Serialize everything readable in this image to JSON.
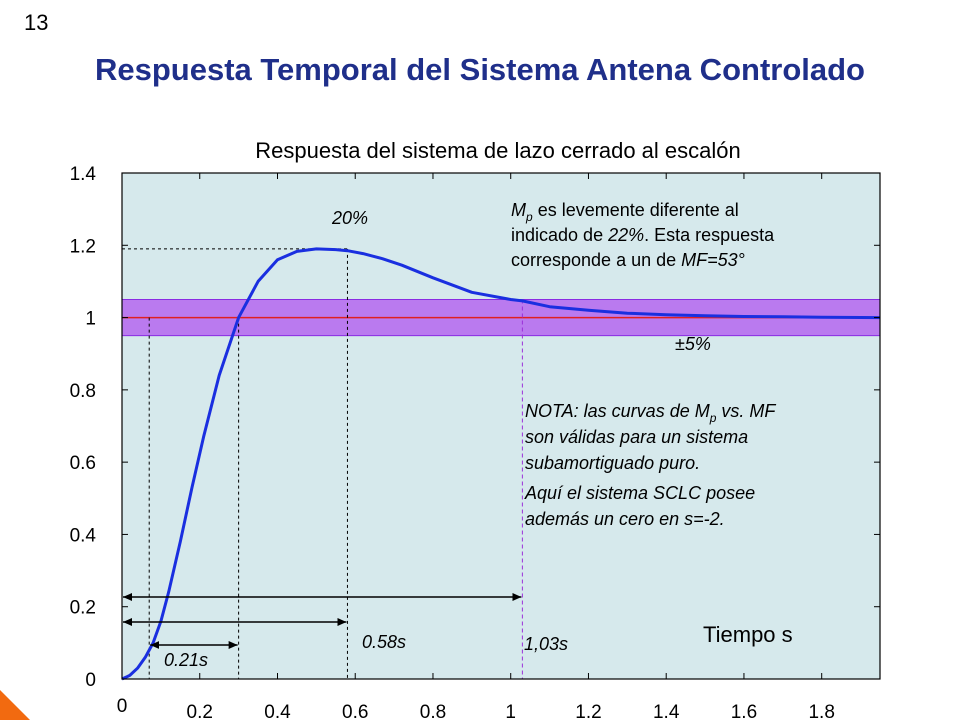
{
  "slide": {
    "number": "13",
    "title": "Respuesta Temporal del Sistema Antena Controlado"
  },
  "chart_data": {
    "type": "line",
    "title": "Respuesta del sistema de lazo cerrado al escalón",
    "xlabel": "Tiempo s",
    "ylabel": "",
    "xlim": [
      0,
      1.95
    ],
    "ylim": [
      0,
      1.4
    ],
    "x_ticks": [
      "0",
      "0.2",
      "0.4",
      "0.6",
      "0.8",
      "1",
      "1.2",
      "1.4",
      "1.6",
      "1.8"
    ],
    "y_ticks": [
      "0",
      "0.2",
      "0.4",
      "0.6",
      "0.8",
      "1",
      "1.2",
      "1.4"
    ],
    "grid": false,
    "background": "#d6e9ec",
    "series": [
      {
        "color": "#1a2fe0",
        "x": [
          0,
          0.02,
          0.04,
          0.06,
          0.08,
          0.1,
          0.12,
          0.15,
          0.18,
          0.21,
          0.25,
          0.3,
          0.35,
          0.4,
          0.45,
          0.5,
          0.55,
          0.58,
          0.62,
          0.67,
          0.72,
          0.8,
          0.9,
          1.0,
          1.03,
          1.1,
          1.2,
          1.3,
          1.4,
          1.5,
          1.6,
          1.7,
          1.8,
          1.95
        ],
        "y": [
          0,
          0.01,
          0.03,
          0.06,
          0.1,
          0.16,
          0.24,
          0.38,
          0.53,
          0.67,
          0.84,
          1.0,
          1.1,
          1.16,
          1.183,
          1.19,
          1.188,
          1.185,
          1.177,
          1.163,
          1.145,
          1.11,
          1.07,
          1.05,
          1.046,
          1.03,
          1.02,
          1.012,
          1.008,
          1.005,
          1.003,
          1.002,
          1.001,
          1.0
        ]
      }
    ],
    "reference_line": {
      "y": 1.0,
      "color": "#e02020"
    },
    "tolerance_band": {
      "ymin": 0.95,
      "ymax": 1.05,
      "color": "#b566f0",
      "label": "±5%"
    },
    "markers": {
      "t1": 0.07,
      "tr": 0.3,
      "tp": 0.58,
      "ts": 1.03,
      "peak": 1.19
    },
    "labels": {
      "tr": "0.21s",
      "tp": "0.58s",
      "ts": "1,03s",
      "overshoot": "20%"
    },
    "notes": {
      "mp_line1_sym": "M",
      "mp_line1_sub": "p",
      "mp_line1_rest": " es levemente diferente al",
      "mp_line2_a": "indicado de ",
      "mp_line2_b": "22%",
      "mp_line2_c": ". Esta respuesta",
      "mp_line3_a": "corresponde a un de ",
      "mp_line3_b": "MF=53°",
      "nota_line1_a": "NOTA: las curvas de M",
      "nota_line1_sub": "p",
      "nota_line1_b": " vs. MF",
      "nota_line2": "son válidas para un sistema",
      "nota_line3": "subamortiguado puro.",
      "nota_line4": "Aquí el sistema SCLC posee",
      "nota_line5": "además un cero en s=-2."
    }
  }
}
